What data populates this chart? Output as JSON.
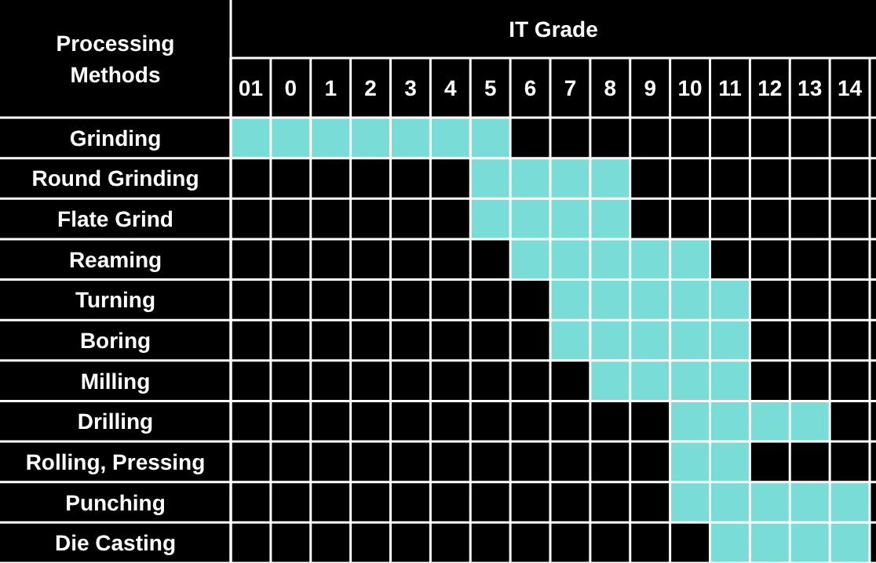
{
  "chart_data": {
    "type": "bar",
    "orientation": "horizontal",
    "xlabel": "IT Grade",
    "ylabel": "Processing Methods",
    "categories": [
      "Grinding",
      "Round Grinding",
      "Flate Grind",
      "Reaming",
      "Turning",
      "Boring",
      "Milling",
      "Drilling",
      "Rolling, Pressing",
      "Punching",
      "Die Casting"
    ],
    "base": [
      -1.5,
      4.5,
      4.5,
      5.5,
      6.5,
      6.5,
      7.5,
      9.5,
      9.5,
      9.5,
      10.5
    ],
    "values": [
      7,
      4,
      4,
      5,
      5,
      5,
      4,
      4,
      2,
      5,
      4
    ],
    "color": "#7adcd6",
    "xlim": [
      -1.5,
      14.5
    ],
    "xticks": [
      {
        "value": -1.5,
        "label": null
      },
      {
        "value": -1,
        "label": "01"
      },
      {
        "value": -0.5,
        "label": null
      },
      0,
      {
        "value": 0.5,
        "label": null
      },
      1,
      {
        "value": 1.5,
        "label": null
      },
      2,
      {
        "value": 2.5,
        "label": null
      },
      3,
      {
        "value": 3.5,
        "label": null
      },
      4,
      {
        "value": 4.5,
        "label": null
      },
      5,
      {
        "value": 5.5,
        "label": null
      },
      6,
      {
        "value": 6.5,
        "label": null
      },
      7,
      {
        "value": 7.5,
        "label": null
      },
      8,
      {
        "value": 8.5,
        "label": null
      },
      9,
      {
        "value": 9.5,
        "label": null
      },
      10,
      {
        "value": 10.5,
        "label": null
      },
      11,
      {
        "value": 11.5,
        "label": null
      },
      12,
      {
        "value": 12.5,
        "label": null
      },
      13,
      {
        "value": 13.5,
        "label": null
      },
      14,
      {
        "value": 14.5,
        "label": null
      }
    ],
    "grid": true
  }
}
